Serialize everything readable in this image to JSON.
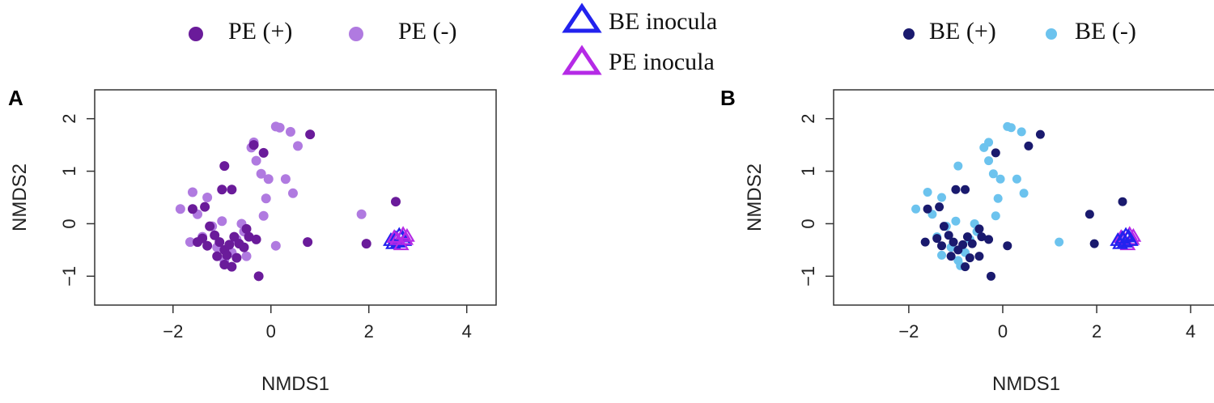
{
  "figure": {
    "legend": {
      "pe_plus": "PE (+)",
      "pe_minus": "PE (-)",
      "be_inocula": "BE inocula",
      "pe_inocula": "PE inocula",
      "be_plus": "BE (+)",
      "be_minus": "BE (-)"
    }
  },
  "colors": {
    "pe_plus": "#6a1b9a",
    "pe_minus": "#b07ae0",
    "be_plus": "#1a1a6e",
    "be_minus": "#6cc3ee",
    "be_inocula": "#2222ee",
    "pe_inocula": "#b52ae6"
  },
  "chart_data": [
    {
      "type": "scatter",
      "panel_label": "A",
      "xlabel": "NMDS1",
      "ylabel": "NMDS2",
      "xlim": [
        -3.6,
        4.6
      ],
      "ylim": [
        -1.55,
        2.55
      ],
      "xticks": [
        "-2",
        "0",
        "2",
        "4"
      ],
      "yticks": [
        "-1",
        "0",
        "1",
        "2"
      ],
      "series": [
        {
          "name": "PE (-)",
          "marker": "circle",
          "color": "#b07ae0",
          "points": [
            [
              0.1,
              1.85
            ],
            [
              0.18,
              1.83
            ],
            [
              0.4,
              1.75
            ],
            [
              0.55,
              1.48
            ],
            [
              -0.4,
              1.45
            ],
            [
              -0.35,
              1.55
            ],
            [
              -0.3,
              1.2
            ],
            [
              -0.2,
              0.95
            ],
            [
              -0.05,
              0.85
            ],
            [
              0.3,
              0.85
            ],
            [
              -0.1,
              0.48
            ],
            [
              0.45,
              0.58
            ],
            [
              -0.15,
              0.15
            ],
            [
              -1.85,
              0.28
            ],
            [
              -1.6,
              0.6
            ],
            [
              -1.5,
              0.18
            ],
            [
              -1.3,
              0.5
            ],
            [
              -1.2,
              -0.05
            ],
            [
              -1.4,
              -0.25
            ],
            [
              -1.1,
              -0.45
            ],
            [
              -0.8,
              -0.55
            ],
            [
              -0.7,
              -0.3
            ],
            [
              -0.55,
              -0.15
            ],
            [
              -0.5,
              -0.62
            ],
            [
              -0.95,
              -0.7
            ],
            [
              0.1,
              -0.42
            ],
            [
              1.85,
              0.18
            ],
            [
              -1.65,
              -0.35
            ],
            [
              -1.0,
              0.05
            ],
            [
              -0.6,
              0.0
            ]
          ]
        },
        {
          "name": "PE (+)",
          "marker": "circle",
          "color": "#6a1b9a",
          "points": [
            [
              0.8,
              1.7
            ],
            [
              -0.35,
              1.5
            ],
            [
              -0.15,
              1.35
            ],
            [
              -0.95,
              1.1
            ],
            [
              -1.0,
              0.65
            ],
            [
              -0.8,
              0.65
            ],
            [
              -1.6,
              0.28
            ],
            [
              -1.35,
              0.32
            ],
            [
              -1.25,
              -0.05
            ],
            [
              -1.4,
              -0.28
            ],
            [
              -1.3,
              -0.42
            ],
            [
              -1.15,
              -0.22
            ],
            [
              -1.05,
              -0.35
            ],
            [
              -0.95,
              -0.5
            ],
            [
              -0.9,
              -0.6
            ],
            [
              -0.85,
              -0.4
            ],
            [
              -0.75,
              -0.25
            ],
            [
              -0.65,
              -0.38
            ],
            [
              -0.55,
              -0.45
            ],
            [
              -0.45,
              -0.25
            ],
            [
              -1.1,
              -0.62
            ],
            [
              -0.95,
              -0.78
            ],
            [
              -0.8,
              -0.82
            ],
            [
              -0.7,
              -0.65
            ],
            [
              -0.5,
              -0.1
            ],
            [
              -0.3,
              -0.3
            ],
            [
              -0.25,
              -1.0
            ],
            [
              0.75,
              -0.35
            ],
            [
              1.95,
              -0.38
            ],
            [
              2.55,
              0.42
            ],
            [
              -1.5,
              -0.35
            ]
          ]
        },
        {
          "name": "BE inocula",
          "marker": "triangle",
          "color": "#2222ee",
          "points": [
            [
              2.45,
              -0.32
            ],
            [
              2.55,
              -0.28
            ],
            [
              2.6,
              -0.35
            ],
            [
              2.68,
              -0.25
            ],
            [
              2.72,
              -0.32
            ],
            [
              2.5,
              -0.38
            ],
            [
              2.62,
              -0.22
            ]
          ]
        },
        {
          "name": "PE inocula",
          "marker": "triangle",
          "color": "#b52ae6",
          "points": [
            [
              2.58,
              -0.3
            ],
            [
              2.7,
              -0.2
            ],
            [
              2.75,
              -0.3
            ],
            [
              2.66,
              -0.4
            ],
            [
              2.52,
              -0.26
            ],
            [
              2.78,
              -0.24
            ]
          ]
        }
      ]
    },
    {
      "type": "scatter",
      "panel_label": "B",
      "xlabel": "NMDS1",
      "ylabel": "NMDS2",
      "xlim": [
        -3.6,
        4.6
      ],
      "ylim": [
        -1.55,
        2.55
      ],
      "xticks": [
        "-2",
        "0",
        "2",
        "4"
      ],
      "yticks": [
        "-1",
        "0",
        "1",
        "2"
      ],
      "series": [
        {
          "name": "BE (-)",
          "marker": "circle",
          "color": "#6cc3ee",
          "points": [
            [
              0.1,
              1.85
            ],
            [
              0.18,
              1.83
            ],
            [
              0.4,
              1.75
            ],
            [
              -0.4,
              1.45
            ],
            [
              -0.3,
              1.55
            ],
            [
              -0.3,
              1.2
            ],
            [
              -0.2,
              0.95
            ],
            [
              -0.05,
              0.85
            ],
            [
              0.3,
              0.85
            ],
            [
              -0.1,
              0.48
            ],
            [
              0.45,
              0.58
            ],
            [
              -0.15,
              0.15
            ],
            [
              -1.85,
              0.28
            ],
            [
              -1.6,
              0.6
            ],
            [
              -1.5,
              0.18
            ],
            [
              -1.3,
              0.5
            ],
            [
              -0.95,
              1.1
            ],
            [
              -1.2,
              -0.05
            ],
            [
              -1.4,
              -0.25
            ],
            [
              -1.1,
              -0.45
            ],
            [
              -0.8,
              -0.55
            ],
            [
              -0.7,
              -0.3
            ],
            [
              -0.55,
              -0.15
            ],
            [
              -0.95,
              -0.7
            ],
            [
              -0.9,
              -0.8
            ],
            [
              1.2,
              -0.35
            ],
            [
              -1.0,
              0.05
            ],
            [
              -0.6,
              0.0
            ],
            [
              -1.3,
              -0.6
            ]
          ]
        },
        {
          "name": "BE (+)",
          "marker": "circle",
          "color": "#1a1a6e",
          "points": [
            [
              0.8,
              1.7
            ],
            [
              0.55,
              1.48
            ],
            [
              -0.15,
              1.35
            ],
            [
              -1.0,
              0.65
            ],
            [
              -0.8,
              0.65
            ],
            [
              -1.6,
              0.28
            ],
            [
              -1.35,
              0.32
            ],
            [
              -1.25,
              -0.05
            ],
            [
              -1.4,
              -0.28
            ],
            [
              -1.3,
              -0.42
            ],
            [
              -1.15,
              -0.22
            ],
            [
              -1.05,
              -0.35
            ],
            [
              -0.95,
              -0.5
            ],
            [
              -0.85,
              -0.4
            ],
            [
              -0.75,
              -0.25
            ],
            [
              -0.65,
              -0.38
            ],
            [
              -0.5,
              -0.62
            ],
            [
              -0.45,
              -0.25
            ],
            [
              -1.1,
              -0.62
            ],
            [
              -0.8,
              -0.82
            ],
            [
              -0.7,
              -0.65
            ],
            [
              -0.5,
              -0.1
            ],
            [
              -0.3,
              -0.3
            ],
            [
              -0.25,
              -1.0
            ],
            [
              0.1,
              -0.42
            ],
            [
              1.85,
              0.18
            ],
            [
              1.95,
              -0.38
            ],
            [
              2.55,
              0.42
            ],
            [
              -1.65,
              -0.35
            ]
          ]
        },
        {
          "name": "PE inocula",
          "marker": "triangle",
          "color": "#b52ae6",
          "points": [
            [
              2.58,
              -0.3
            ],
            [
              2.7,
              -0.2
            ],
            [
              2.75,
              -0.3
            ],
            [
              2.66,
              -0.4
            ],
            [
              2.52,
              -0.26
            ],
            [
              2.78,
              -0.24
            ]
          ]
        },
        {
          "name": "BE inocula",
          "marker": "triangle",
          "color": "#2222ee",
          "points": [
            [
              2.45,
              -0.32
            ],
            [
              2.55,
              -0.28
            ],
            [
              2.6,
              -0.35
            ],
            [
              2.68,
              -0.25
            ],
            [
              2.72,
              -0.32
            ],
            [
              2.5,
              -0.38
            ],
            [
              2.62,
              -0.22
            ]
          ]
        }
      ]
    }
  ]
}
